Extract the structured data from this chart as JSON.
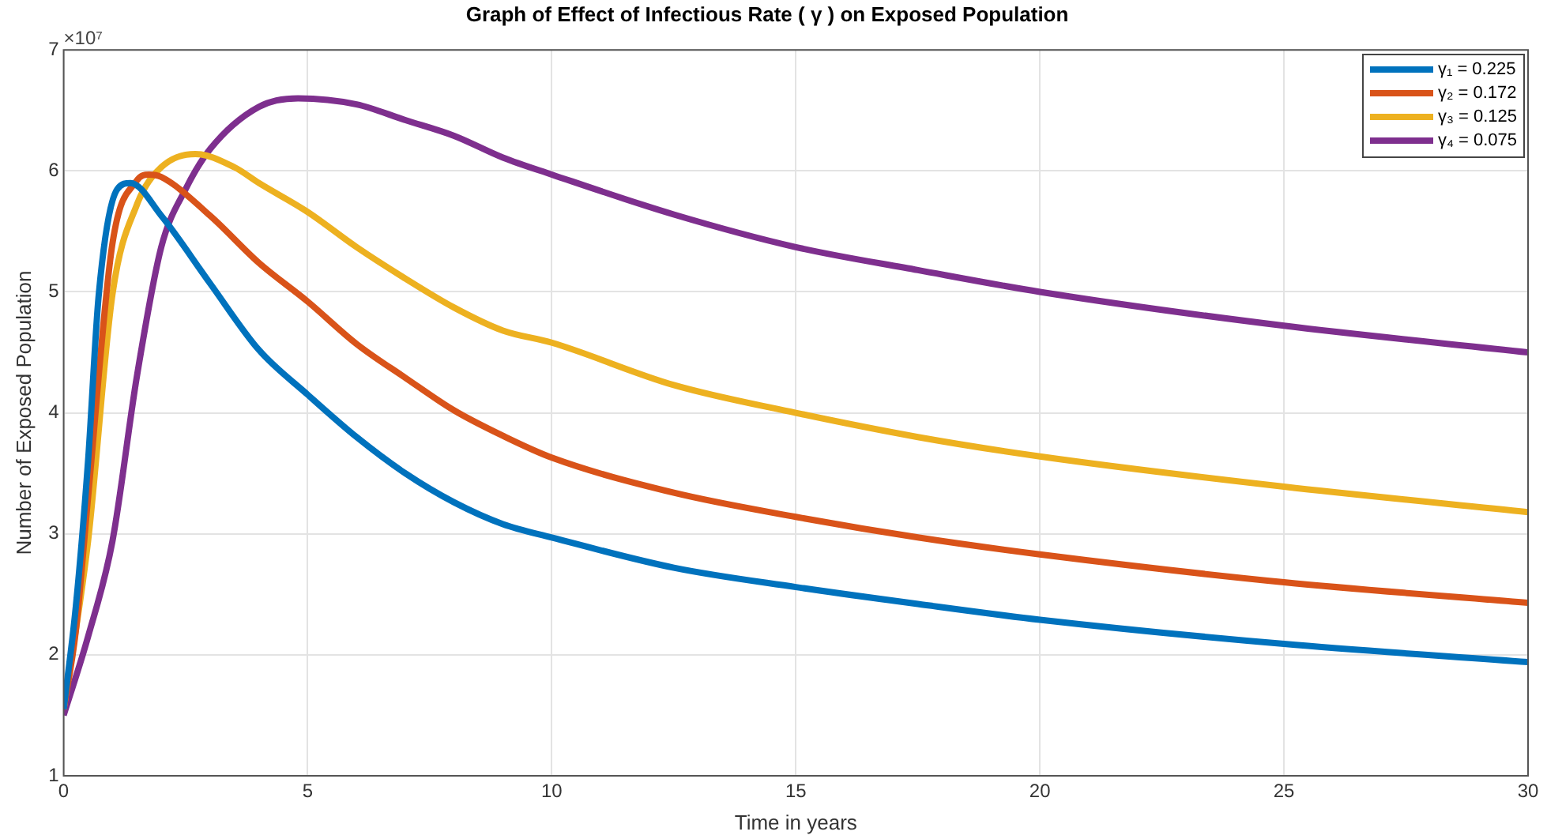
{
  "chart_data": {
    "type": "line",
    "title": "Graph of Effect of Infectious Rate ( γ ) on Exposed Population",
    "xlabel": "Time in years",
    "ylabel": "Number of Exposed Population",
    "annotations": [
      "×10⁷"
    ],
    "xlim": [
      0,
      30
    ],
    "xticks": [
      0,
      5,
      10,
      15,
      20,
      25,
      30
    ],
    "ylim": [
      1,
      7
    ],
    "yticks": [
      1,
      2,
      3,
      4,
      5,
      6,
      7
    ],
    "grid": true,
    "legend": "top right",
    "marker": "none",
    "line_style": "solid",
    "series": [
      {
        "name": "γ₁ = 0.225",
        "color": "#0072bd",
        "x": [
          0,
          0.25,
          0.5,
          0.72,
          1.1,
          1.37,
          2,
          3,
          4,
          5,
          6,
          7,
          8,
          9,
          10,
          12.5,
          15,
          17.5,
          20,
          25,
          30
        ],
        "values": [
          1.55,
          2.4,
          3.6,
          4.98,
          5.85,
          5.9,
          5.63,
          5.07,
          4.52,
          4.15,
          3.8,
          3.5,
          3.26,
          3.08,
          2.97,
          2.72,
          2.56,
          2.42,
          2.29,
          2.09,
          1.94
        ]
      },
      {
        "name": "γ₂ = 0.172",
        "color": "#d95319",
        "x": [
          0,
          0.25,
          0.5,
          1,
          1.5,
          1.75,
          2,
          3,
          4,
          5,
          6,
          7,
          8,
          9,
          10,
          12.5,
          15,
          17.5,
          20,
          25,
          30
        ],
        "values": [
          1.55,
          2.2,
          3.3,
          5.4,
          5.92,
          5.97,
          5.95,
          5.63,
          5.24,
          4.92,
          4.57,
          4.29,
          4.02,
          3.81,
          3.63,
          3.34,
          3.14,
          2.97,
          2.83,
          2.6,
          2.43
        ]
      },
      {
        "name": "γ₃ = 0.125",
        "color": "#edb120",
        "x": [
          0,
          0.5,
          1,
          1.5,
          2,
          2.7,
          3.5,
          4,
          5,
          6,
          7,
          8,
          9,
          10,
          12.5,
          15,
          17.5,
          20,
          25,
          30
        ],
        "values": [
          1.55,
          2.94,
          4.98,
          5.72,
          6.03,
          6.14,
          6.03,
          5.9,
          5.66,
          5.37,
          5.11,
          4.87,
          4.68,
          4.58,
          4.23,
          4,
          3.8,
          3.64,
          3.39,
          3.18
        ]
      },
      {
        "name": "γ₄ = 0.075",
        "color": "#7e2f8e",
        "x": [
          0,
          0.5,
          1,
          1.5,
          2,
          2.5,
          3,
          4,
          4.8,
          6,
          7,
          8,
          9,
          10,
          12.5,
          15,
          17.5,
          20,
          25,
          30
        ],
        "values": [
          1.5,
          2.15,
          2.94,
          4.3,
          5.37,
          5.85,
          6.18,
          6.53,
          6.6,
          6.55,
          6.42,
          6.29,
          6.11,
          5.97,
          5.64,
          5.37,
          5.18,
          5,
          4.72,
          4.5
        ]
      }
    ]
  }
}
